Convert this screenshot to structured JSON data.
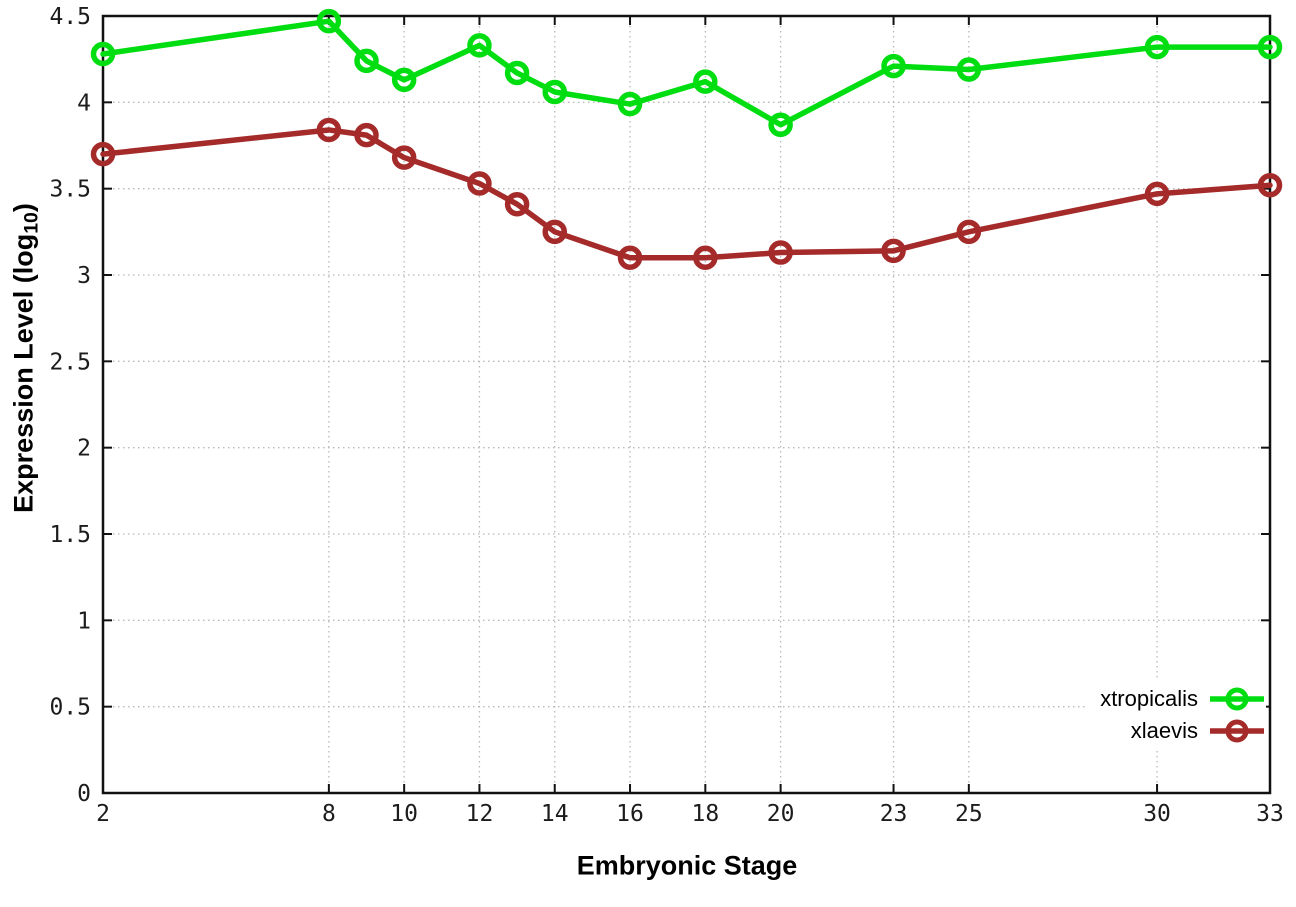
{
  "chart_data": {
    "type": "line",
    "title": "",
    "xlabel": "Embryonic Stage",
    "ylabel": "Expression Level (log10)",
    "ylabel_prefix": "Expression Level (log",
    "ylabel_subscript": "10",
    "ylabel_suffix": ")",
    "xlim": [
      2,
      33
    ],
    "ylim": [
      0,
      4.5
    ],
    "grid": true,
    "legend_position": "bottom-right",
    "x": [
      2,
      8,
      9,
      10,
      12,
      13,
      14,
      16,
      18,
      20,
      23,
      25,
      30,
      33
    ],
    "xtick_values": [
      2,
      8,
      10,
      12,
      14,
      16,
      18,
      20,
      23,
      25,
      30,
      33
    ],
    "xtick_labels": [
      "2",
      "8",
      "10",
      "12",
      "14",
      "16",
      "18",
      "20",
      "23",
      "25",
      "30",
      "33"
    ],
    "ytick_values": [
      0,
      0.5,
      1,
      1.5,
      2,
      2.5,
      3,
      3.5,
      4,
      4.5
    ],
    "ytick_labels": [
      "0",
      "0.5",
      "1",
      "1.5",
      "2",
      "2.5",
      "3",
      "3.5",
      "4",
      "4.5"
    ],
    "series": [
      {
        "name": "xtropicalis",
        "color": "#00dd11",
        "values": [
          4.28,
          4.47,
          4.24,
          4.13,
          4.33,
          4.17,
          4.06,
          3.99,
          4.12,
          3.87,
          4.21,
          4.19,
          4.32,
          4.32
        ]
      },
      {
        "name": "xlaevis",
        "color": "#a52a2a",
        "values": [
          3.7,
          3.84,
          3.81,
          3.68,
          3.53,
          3.41,
          3.25,
          3.1,
          3.1,
          3.13,
          3.14,
          3.25,
          3.47,
          3.52
        ]
      }
    ],
    "colors": {
      "axis": "#111111",
      "grid": "#b8b8b8",
      "tick_text": "#1c1c1c",
      "background": "#ffffff"
    }
  }
}
